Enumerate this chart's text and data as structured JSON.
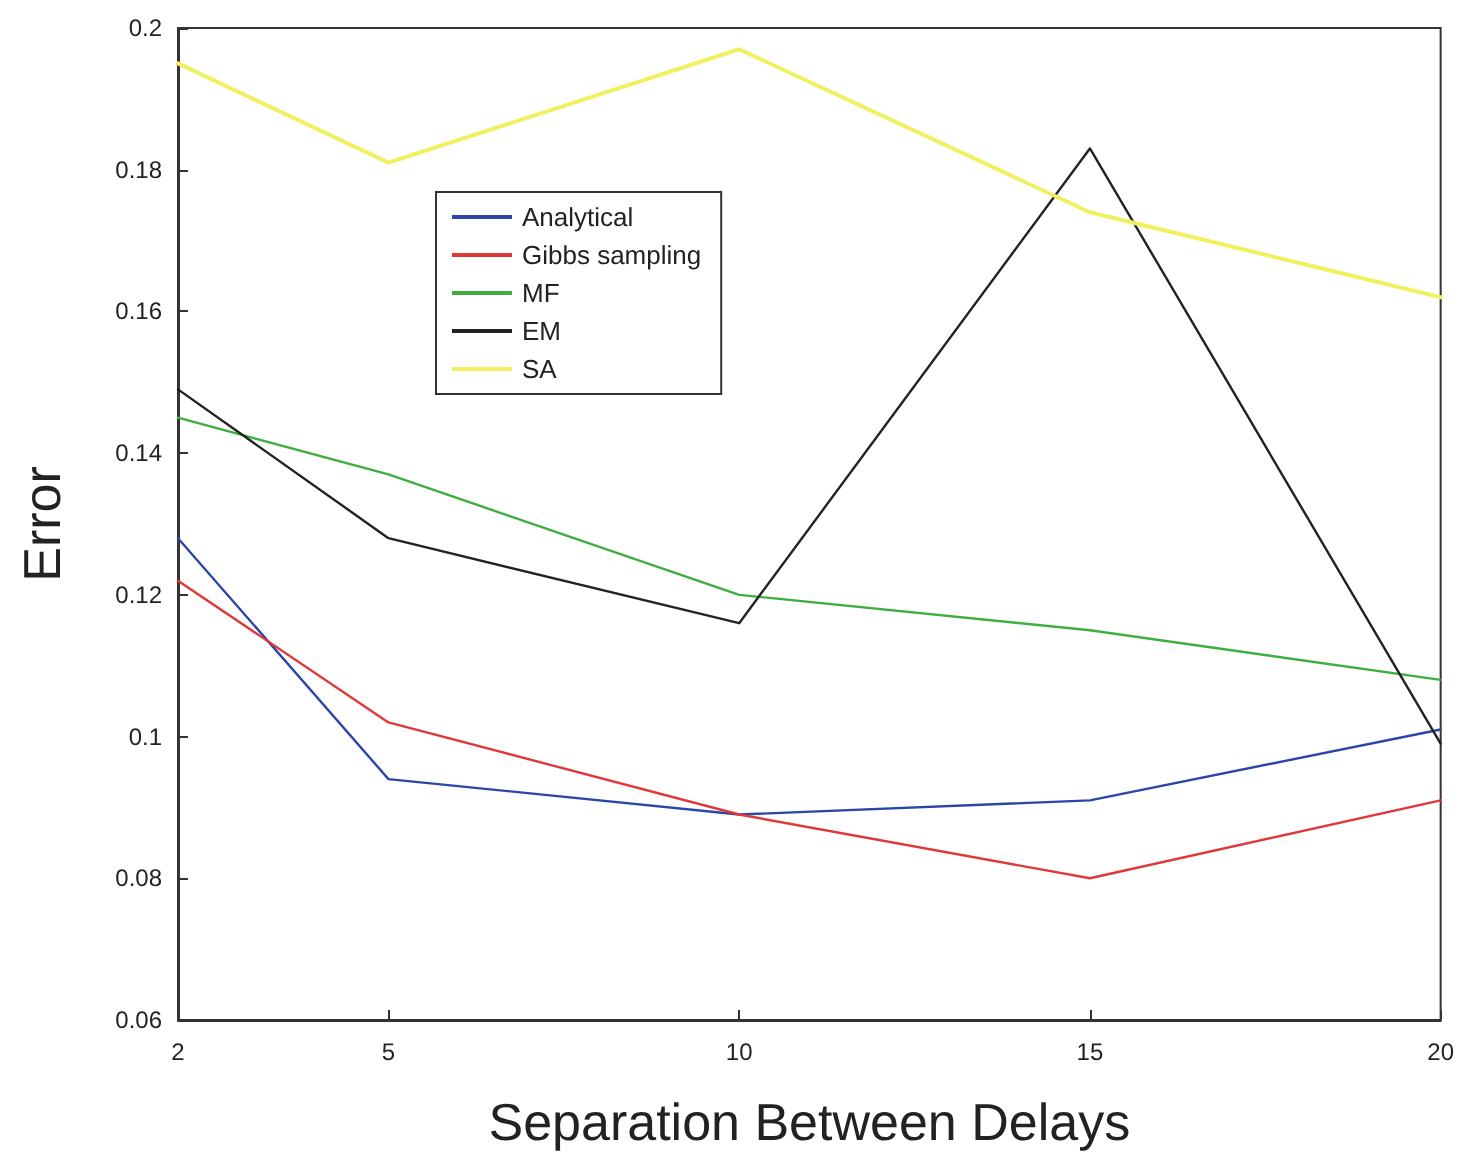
{
  "chart_data": {
    "type": "line",
    "xlabel": "Separation Between Delays",
    "ylabel": "Error",
    "x": [
      2,
      5,
      10,
      15,
      20
    ],
    "xlim": [
      2,
      20
    ],
    "xticks": [
      2,
      5,
      10,
      15,
      20
    ],
    "ylim": [
      0.06,
      0.2
    ],
    "yticks": [
      0.06,
      0.08,
      0.1,
      0.12,
      0.14,
      0.16,
      0.18,
      0.2
    ],
    "grid": false,
    "legend": "top left",
    "marker": "none",
    "series": [
      {
        "name": "Analytical",
        "color": "#2b46a8",
        "values": [
          0.128,
          0.094,
          0.089,
          0.091,
          0.101
        ]
      },
      {
        "name": "Gibbs sampling",
        "color": "#e03838",
        "values": [
          0.122,
          0.102,
          0.089,
          0.08,
          0.091
        ]
      },
      {
        "name": "MF",
        "color": "#3fae3f",
        "values": [
          0.145,
          0.137,
          0.12,
          0.115,
          0.108
        ]
      },
      {
        "name": "EM",
        "color": "#222222",
        "values": [
          0.149,
          0.128,
          0.116,
          0.183,
          0.099
        ]
      },
      {
        "name": "SA",
        "color": "#f0f060",
        "values": [
          0.195,
          0.181,
          0.197,
          0.174,
          0.162
        ]
      }
    ]
  }
}
